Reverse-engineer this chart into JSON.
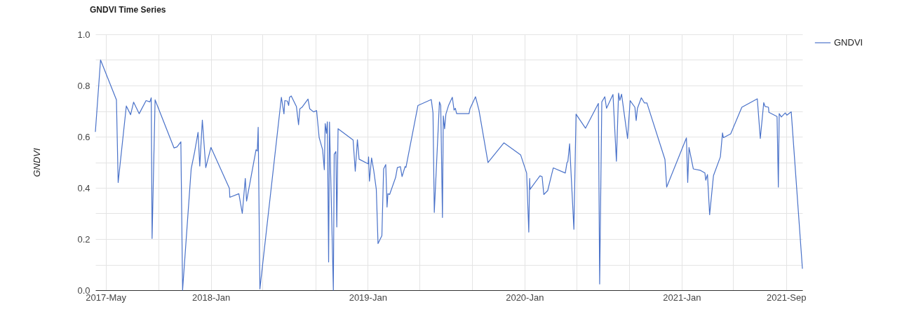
{
  "chart_data": {
    "type": "line",
    "title": "GNDVI Time Series",
    "ylabel": "GNDVI",
    "x": [
      "2017-04-07",
      "2017-04-19",
      "2017-05-26",
      "2017-05-30",
      "2017-06-18",
      "2017-06-28",
      "2017-07-05",
      "2017-07-18",
      "2017-08-03",
      "2017-08-12",
      "2017-08-15",
      "2017-08-17",
      "2017-08-24",
      "2017-10-07",
      "2017-10-14",
      "2017-10-23",
      "2017-10-27",
      "2017-11-16",
      "2017-11-24",
      "2017-12-02",
      "2017-12-06",
      "2017-12-12",
      "2017-12-20",
      "2018-01-01",
      "2018-02-13",
      "2018-02-14",
      "2018-03-07",
      "2018-03-15",
      "2018-03-22",
      "2018-03-25",
      "2018-04-16",
      "2018-04-19",
      "2018-04-21",
      "2018-04-25",
      "2018-06-14",
      "2018-06-20",
      "2018-06-22",
      "2018-06-28",
      "2018-07-01",
      "2018-07-03",
      "2018-07-07",
      "2018-07-19",
      "2018-07-24",
      "2018-07-27",
      "2018-08-01",
      "2018-08-15",
      "2018-08-19",
      "2018-08-28",
      "2018-09-04",
      "2018-09-10",
      "2018-09-18",
      "2018-09-22",
      "2018-09-24",
      "2018-09-27",
      "2018-09-29",
      "2018-10-02",
      "2018-10-04",
      "2018-10-13",
      "2018-10-15",
      "2018-10-19",
      "2018-10-21",
      "2018-10-24",
      "2018-11-28",
      "2018-12-03",
      "2018-12-08",
      "2018-12-12",
      "2019-01-02",
      "2019-01-03",
      "2019-01-05",
      "2019-01-10",
      "2019-01-15",
      "2019-01-21",
      "2019-01-25",
      "2019-02-03",
      "2019-02-07",
      "2019-02-12",
      "2019-02-15",
      "2019-02-17",
      "2019-02-21",
      "2019-03-07",
      "2019-03-11",
      "2019-03-18",
      "2019-03-22",
      "2019-03-29",
      "2019-03-31",
      "2019-04-28",
      "2019-05-29",
      "2019-06-02",
      "2019-06-05",
      "2019-06-17",
      "2019-06-20",
      "2019-06-24",
      "2019-06-26",
      "2019-06-29",
      "2019-07-02",
      "2019-07-08",
      "2019-07-17",
      "2019-07-21",
      "2019-07-24",
      "2019-07-27",
      "2019-08-25",
      "2019-08-27",
      "2019-09-09",
      "2019-09-17",
      "2019-10-08",
      "2019-11-14",
      "2019-12-23",
      "2020-01-06",
      "2020-01-11",
      "2020-01-13",
      "2020-01-14",
      "2020-02-06",
      "2020-02-11",
      "2020-02-15",
      "2020-02-24",
      "2020-03-08",
      "2020-04-05",
      "2020-04-09",
      "2020-04-11",
      "2020-04-15",
      "2020-04-25",
      "2020-04-30",
      "2020-05-22",
      "2020-06-21",
      "2020-06-24",
      "2020-06-29",
      "2020-07-06",
      "2020-07-10",
      "2020-07-25",
      "2020-08-02",
      "2020-08-07",
      "2020-08-10",
      "2020-08-14",
      "2020-08-28",
      "2020-09-03",
      "2020-09-14",
      "2020-09-17",
      "2020-09-20",
      "2020-09-29",
      "2020-10-06",
      "2020-10-12",
      "2020-11-23",
      "2020-11-27",
      "2021-01-12",
      "2021-01-15",
      "2021-01-18",
      "2021-01-28",
      "2021-02-14",
      "2021-02-24",
      "2021-02-26",
      "2021-03-02",
      "2021-03-07",
      "2021-03-16",
      "2021-04-01",
      "2021-04-06",
      "2021-04-08",
      "2021-04-25",
      "2021-05-21",
      "2021-06-26",
      "2021-07-03",
      "2021-07-11",
      "2021-07-14",
      "2021-07-22",
      "2021-07-23",
      "2021-08-11",
      "2021-08-14",
      "2021-08-16",
      "2021-08-21",
      "2021-08-30",
      "2021-09-03",
      "2021-09-13",
      "2021-10-09"
    ],
    "series": [
      {
        "name": "GNDVI",
        "color": "#4a72c9",
        "values": [
          0.62,
          0.9,
          0.744,
          0.421,
          0.72,
          0.686,
          0.735,
          0.69,
          0.741,
          0.736,
          0.752,
          0.202,
          0.744,
          0.556,
          0.56,
          0.58,
          0,
          0.474,
          0.54,
          0.617,
          0.485,
          0.665,
          0.479,
          0.558,
          0.398,
          0.363,
          0.377,
          0.3,
          0.437,
          0.348,
          0.549,
          0.544,
          0.637,
          0.005,
          0.754,
          0.689,
          0.741,
          0.739,
          0.722,
          0.754,
          0.759,
          0.718,
          0.647,
          0.709,
          0.715,
          0.747,
          0.709,
          0.697,
          0.702,
          0.596,
          0.549,
          0.471,
          0.651,
          0.613,
          0.658,
          0.11,
          0.657,
          0,
          0.531,
          0.542,
          0.247,
          0.631,
          0.587,
          0.465,
          0.588,
          0.512,
          0.494,
          0.521,
          0.426,
          0.517,
          0.468,
          0.394,
          0.182,
          0.213,
          0.474,
          0.491,
          0.325,
          0.377,
          0.374,
          0.441,
          0.479,
          0.483,
          0.444,
          0.483,
          0.48,
          0.722,
          0.745,
          0.693,
          0.304,
          0.736,
          0.722,
          0.284,
          0.681,
          0.631,
          0.688,
          0.721,
          0.754,
          0.704,
          0.711,
          0.69,
          0.69,
          0.709,
          0.756,
          0.704,
          0.499,
          0.576,
          0.529,
          0.458,
          0.227,
          0.437,
          0.394,
          0.447,
          0.444,
          0.374,
          0.389,
          0.478,
          0.458,
          0.499,
          0.503,
          0.572,
          0.238,
          0.688,
          0.633,
          0.73,
          0.024,
          0.736,
          0.756,
          0.711,
          0.765,
          0.504,
          0.77,
          0.742,
          0.766,
          0.593,
          0.741,
          0.715,
          0.663,
          0.711,
          0.752,
          0.732,
          0.732,
          0.511,
          0.403,
          0.595,
          0.421,
          0.558,
          0.474,
          0.468,
          0.458,
          0.43,
          0.452,
          0.295,
          0.448,
          0.521,
          0.615,
          0.596,
          0.611,
          0.715,
          0.748,
          0.593,
          0.733,
          0.718,
          0.715,
          0.695,
          0.679,
          0.403,
          0.69,
          0.677,
          0.693,
          0.684,
          0.697,
          0.085
        ]
      }
    ],
    "xlim": [
      "2017-04-07",
      "2021-10-09"
    ],
    "xticks": [
      {
        "value": "2017-05-01",
        "label": "2017-May"
      },
      {
        "value": "2017-09-01",
        "label": null
      },
      {
        "value": "2018-01-01",
        "label": "2018-Jan"
      },
      {
        "value": "2018-05-01",
        "label": null
      },
      {
        "value": "2018-09-01",
        "label": null
      },
      {
        "value": "2019-01-01",
        "label": "2019-Jan"
      },
      {
        "value": "2019-05-01",
        "label": null
      },
      {
        "value": "2019-09-01",
        "label": null
      },
      {
        "value": "2020-01-01",
        "label": "2020-Jan"
      },
      {
        "value": "2020-05-01",
        "label": null
      },
      {
        "value": "2020-09-01",
        "label": null
      },
      {
        "value": "2021-01-01",
        "label": "2021-Jan"
      },
      {
        "value": "2021-05-01",
        "label": null
      },
      {
        "value": "2021-09-01",
        "label": "2021-Sep"
      }
    ],
    "ylim": [
      0,
      1
    ],
    "yticks": [
      {
        "value": 0,
        "label": "0.0"
      },
      {
        "value": 0.1,
        "label": null
      },
      {
        "value": 0.2,
        "label": "0.2"
      },
      {
        "value": 0.3,
        "label": null
      },
      {
        "value": 0.4,
        "label": "0.4"
      },
      {
        "value": 0.5,
        "label": null
      },
      {
        "value": 0.6,
        "label": "0.6"
      },
      {
        "value": 0.7,
        "label": null
      },
      {
        "value": 0.8,
        "label": "0.8"
      },
      {
        "value": 0.9,
        "label": null
      },
      {
        "value": 1,
        "label": "1.0"
      }
    ],
    "grid": true,
    "legend": "top right"
  }
}
